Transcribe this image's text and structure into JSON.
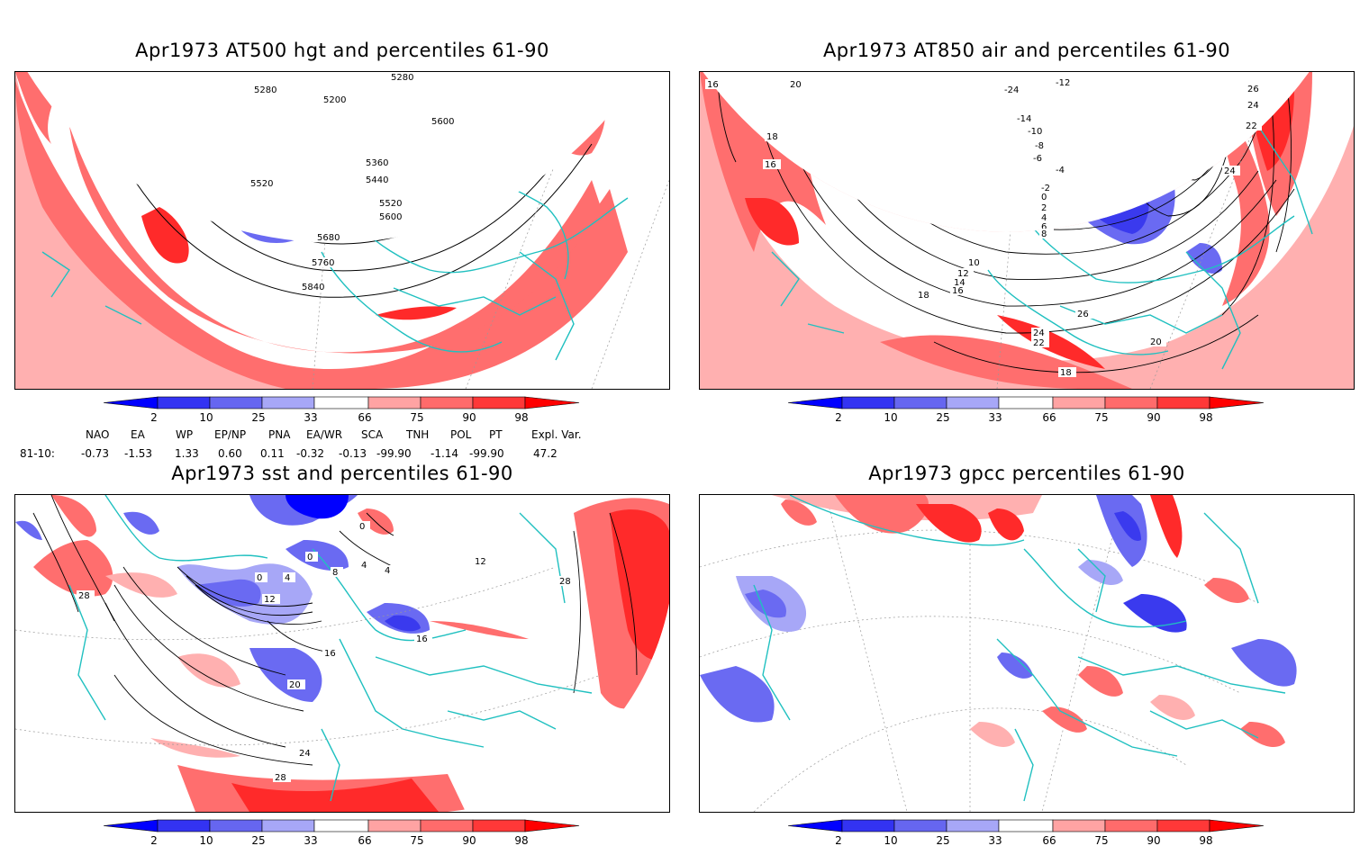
{
  "panels": [
    {
      "title": "Apr1973 AT500 hgt and percentiles 61-90",
      "contour_labels": [
        "5280",
        "5280",
        "5200",
        "5600",
        "5360",
        "5440",
        "5520",
        "5520",
        "5600",
        "5680",
        "5760",
        "5840"
      ]
    },
    {
      "title": "Apr1973 AT850 air and percentiles 61-90",
      "contour_labels": [
        "-12",
        "-24",
        "-14",
        "-10",
        "-8",
        "-6",
        "-4",
        "-2",
        "0",
        "2",
        "4",
        "6",
        "8",
        "10",
        "12",
        "14",
        "16",
        "18",
        "16",
        "18",
        "20",
        "26",
        "24",
        "22",
        "24",
        "22",
        "24",
        "26",
        "20",
        "18",
        "16"
      ]
    },
    {
      "title": "Apr1973 sst and percentiles 61-90",
      "contour_labels": [
        "28",
        "0",
        "4",
        "8",
        "12",
        "0",
        "4",
        "0",
        "4",
        "16",
        "16",
        "20",
        "24",
        "28",
        "12",
        "28"
      ]
    },
    {
      "title": "Apr1973 gpcc percentiles 61-90",
      "contour_labels": []
    }
  ],
  "colorbar": {
    "labels": [
      "2",
      "10",
      "25",
      "33",
      "66",
      "75",
      "90",
      "98"
    ],
    "colors": [
      "#0000ff",
      "#3333f2",
      "#6666f0",
      "#a7a7f7",
      "#ffa3a3",
      "#ff6b6b",
      "#ff3838",
      "#ff0000"
    ]
  },
  "indices": {
    "headers": [
      "NAO",
      "EA",
      "WP",
      "EP/NP",
      "PNA",
      "EA/WR",
      "SCA",
      "TNH",
      "POL",
      "PT",
      "Expl. Var."
    ],
    "row_label": "81-10:",
    "values": [
      "-0.73",
      "-1.53",
      "1.33",
      "0.60",
      "0.11",
      "-0.32",
      "-0.13",
      "-99.90",
      "-1.14",
      "-99.90",
      "47.2"
    ]
  }
}
